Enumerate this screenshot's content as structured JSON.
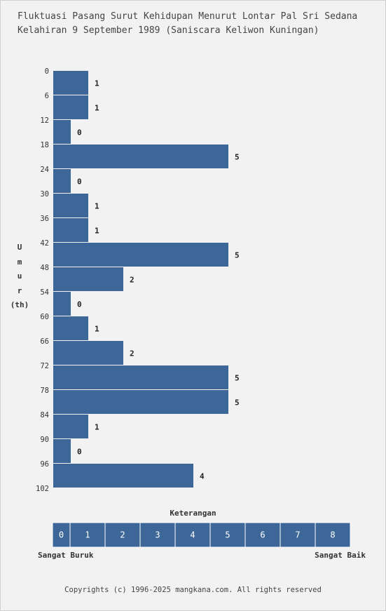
{
  "title_line1": "Fluktuasi Pasang Surut Kehidupan Menurut Lontar Pal Sri Sedana",
  "title_line2": "Kelahiran 9 September 1989 (Saniscara Keliwon Kuningan)",
  "y_axis_label": [
    "U",
    "m",
    "u",
    "r",
    "(th)"
  ],
  "legend": {
    "title": "Keterangan",
    "scale": [
      "0",
      "1",
      "2",
      "3",
      "4",
      "5",
      "6",
      "7",
      "8"
    ],
    "left_label": "Sangat Buruk",
    "right_label": "Sangat Baik"
  },
  "copyright": "Copyrights (c) 1996-2025 mangkana.com. All rights reserved",
  "colors": {
    "bar": "#3d6699",
    "background": "#f2f2f2"
  },
  "chart_data": {
    "type": "bar",
    "orientation": "horizontal",
    "title": "Fluktuasi Pasang Surut Kehidupan Menurut Lontar Pal Sri Sedana Kelahiran 9 September 1989 (Saniscara Keliwon Kuningan)",
    "ylabel": "Umur (th)",
    "xlabel": "",
    "ticks": [
      "0",
      "6",
      "12",
      "18",
      "24",
      "30",
      "36",
      "42",
      "48",
      "54",
      "60",
      "66",
      "72",
      "78",
      "84",
      "90",
      "96",
      "102"
    ],
    "values": [
      1,
      1,
      0,
      5,
      0,
      1,
      1,
      5,
      2,
      0,
      1,
      2,
      5,
      5,
      1,
      0,
      4
    ],
    "xlim": [
      0,
      8
    ]
  }
}
